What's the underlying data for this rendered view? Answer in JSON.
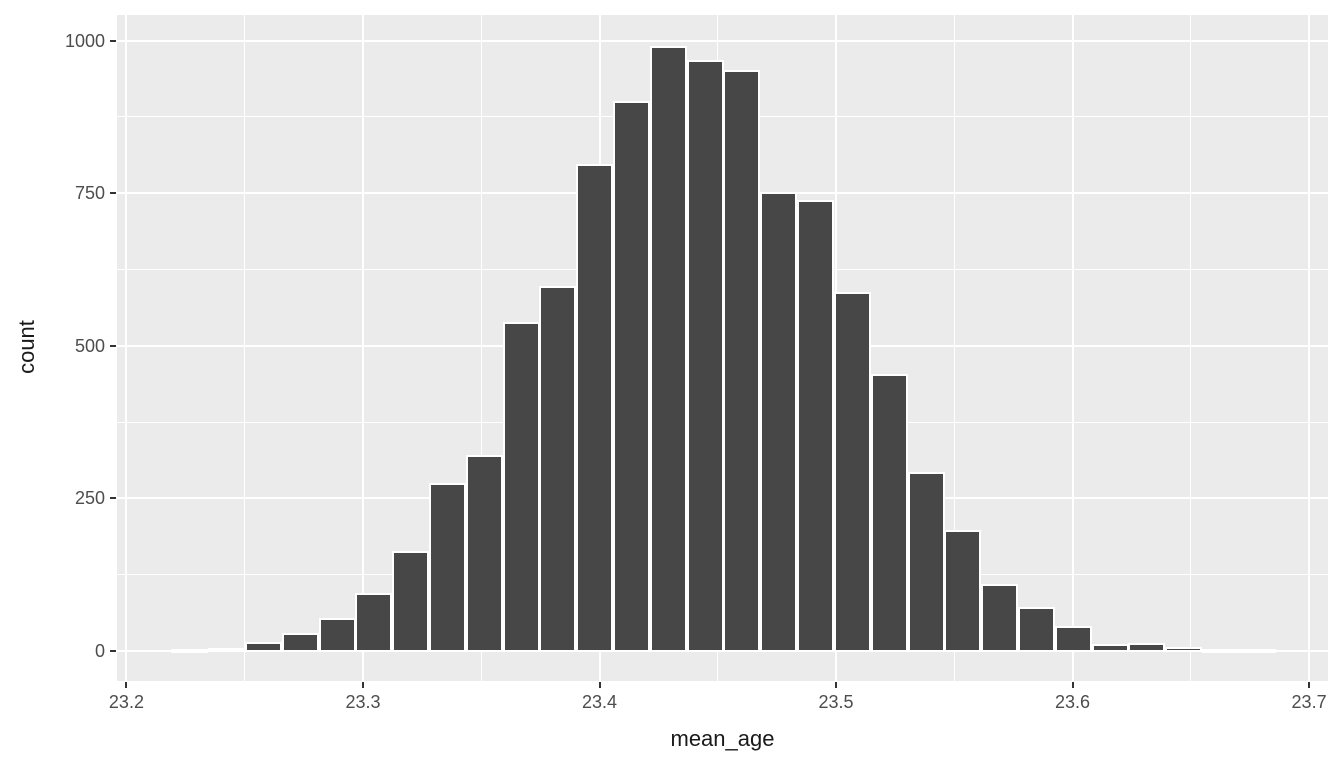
{
  "chart_data": {
    "type": "bar",
    "subtype": "histogram",
    "title": "",
    "xlabel": "mean_age",
    "ylabel": "count",
    "x_domain": [
      23.196,
      23.708
    ],
    "y_domain": [
      -49,
      1042
    ],
    "x_major_ticks": [
      23.2,
      23.3,
      23.4,
      23.5,
      23.6,
      23.7
    ],
    "x_tick_labels": [
      "23.2",
      "23.3",
      "23.4",
      "23.5",
      "23.6",
      "23.7"
    ],
    "x_minor_ticks": [
      23.25,
      23.35,
      23.45,
      23.55,
      23.65
    ],
    "y_major_ticks": [
      0,
      250,
      500,
      750,
      1000
    ],
    "y_tick_labels": [
      "0",
      "250",
      "500",
      "750",
      "1000"
    ],
    "y_minor_ticks": [
      125,
      375,
      625,
      875
    ],
    "grid": true,
    "legend": "none",
    "binwidth": 0.01557,
    "bin_centers": [
      23.2268,
      23.2424,
      23.2579,
      23.2735,
      23.2891,
      23.3046,
      23.3202,
      23.3358,
      23.3513,
      23.3669,
      23.3824,
      23.398,
      23.4136,
      23.4291,
      23.4447,
      23.4602,
      23.4758,
      23.4914,
      23.5069,
      23.5225,
      23.5381,
      23.5536,
      23.5692,
      23.5847,
      23.6003,
      23.6159,
      23.6314,
      23.647,
      23.6625,
      23.6781
    ],
    "counts": [
      2,
      4,
      14,
      28,
      52,
      94,
      162,
      274,
      319,
      538,
      597,
      797,
      899,
      990,
      966,
      951,
      750,
      737,
      587,
      453,
      291,
      197,
      108,
      70,
      39,
      10,
      12,
      5,
      0,
      2
    ],
    "colors": {
      "bar_fill": "#474747",
      "bar_stroke": "#FFFFFF",
      "panel_bg": "#EBEBEB",
      "grid": "#FFFFFF",
      "tick_mark": "#333333",
      "tick_label": "#4D4D4D",
      "axis_title": "#1A1A1A",
      "page_bg": "#FFFFFF"
    }
  }
}
